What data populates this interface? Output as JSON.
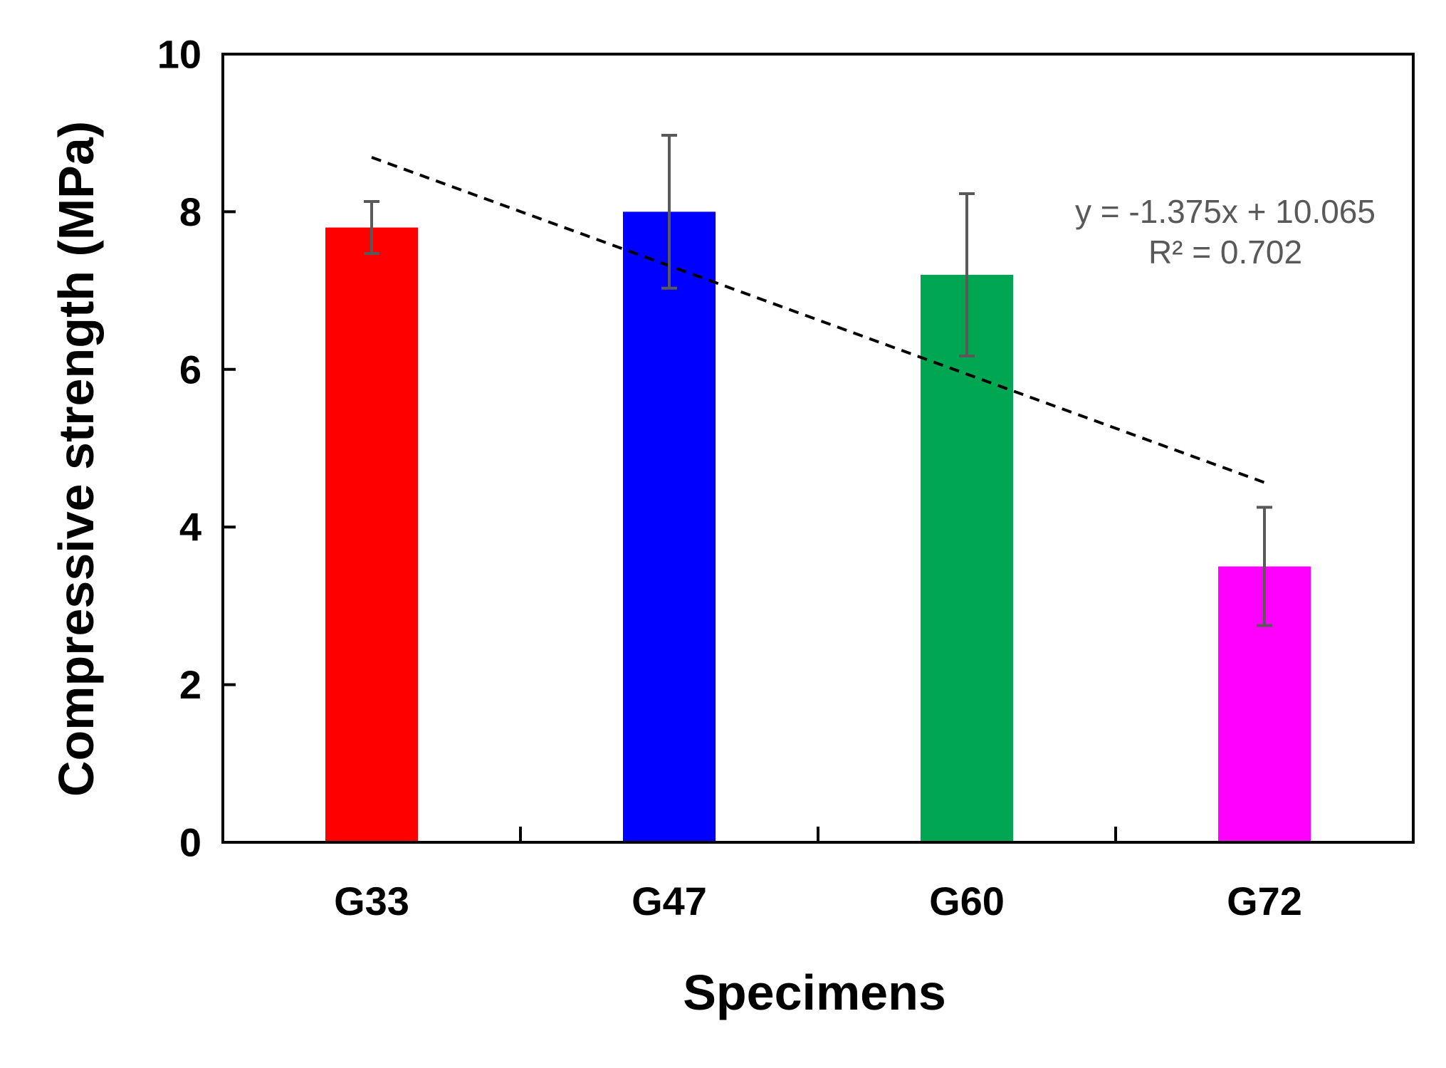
{
  "chart_data": {
    "type": "bar",
    "title": "",
    "xlabel": "Specimens",
    "ylabel": "Compressive strength (MPa)",
    "ylim": [
      0,
      10
    ],
    "yticks": [
      0,
      2,
      4,
      6,
      8,
      10
    ],
    "ytick_labels": [
      "0",
      "2",
      "4",
      "6",
      "8",
      "10"
    ],
    "categories": [
      "G33",
      "G47",
      "G60",
      "G72"
    ],
    "values": [
      7.8,
      8.0,
      7.2,
      3.5
    ],
    "error": [
      0.33,
      0.97,
      1.03,
      0.75
    ],
    "colors": [
      "#ff0000",
      "#0000ff",
      "#00a651",
      "#ff00ff"
    ],
    "error_color": "#595959",
    "grid": false,
    "legend": "none",
    "trendline": {
      "type": "linear",
      "slope": -1.375,
      "intercept": 10.065,
      "r2": 0.702,
      "equation_label": "y = -1.375x + 10.065",
      "r2_label": "R² = 0.702",
      "color": "#000000"
    }
  }
}
